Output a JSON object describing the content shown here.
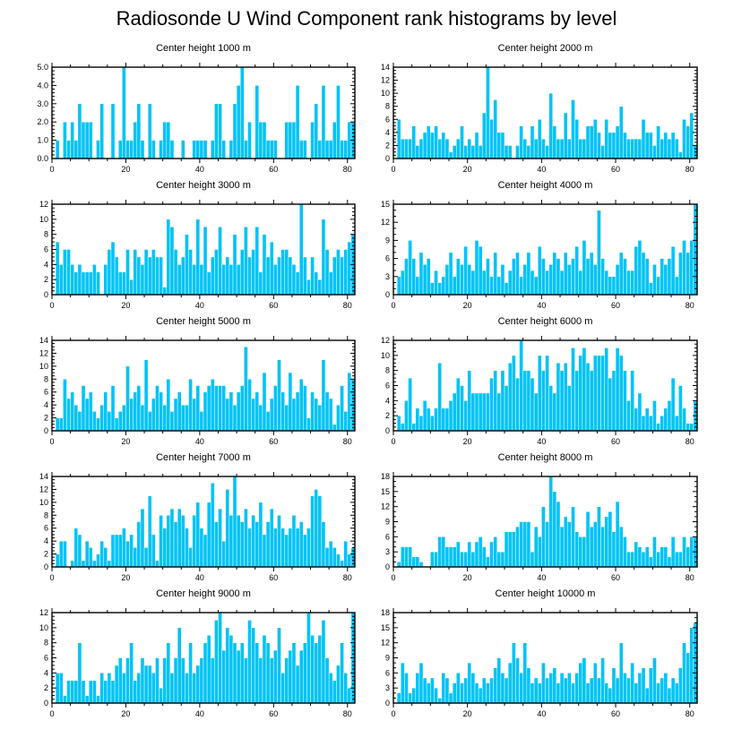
{
  "figure_title": "Radiosonde U Wind Component rank histograms by level",
  "colors": {
    "bar": "#00c3f7",
    "bar_edge": "#ffffff",
    "frame": "#000000"
  },
  "chart_data": [
    {
      "type": "bar",
      "title": "Center height 1000 m",
      "xlim": [
        0,
        82
      ],
      "ylim": [
        0,
        5
      ],
      "xticks": [
        0,
        20,
        40,
        60,
        80
      ],
      "yticks": [
        0,
        1,
        2,
        3,
        4,
        5
      ],
      "ytick_labels": [
        "0.0",
        "1.0",
        "2.0",
        "3.0",
        "4.0",
        "5.0"
      ],
      "values": [
        0,
        1,
        0,
        2,
        1,
        2,
        1,
        3,
        2,
        2,
        2,
        0,
        1,
        3,
        0,
        0,
        3,
        0,
        1,
        5,
        1,
        1,
        2,
        3,
        1,
        0,
        3,
        1,
        0,
        1,
        2,
        2,
        1,
        0,
        0,
        1,
        0,
        0,
        1,
        1,
        1,
        1,
        0,
        1,
        3,
        3,
        1,
        0,
        1,
        3,
        4,
        5,
        1,
        2,
        0,
        4,
        2,
        2,
        1,
        1,
        1,
        0,
        0,
        2,
        2,
        2,
        4,
        1,
        1,
        0,
        2,
        3,
        1,
        4,
        1,
        1,
        2,
        4,
        1,
        1,
        2,
        2
      ]
    },
    {
      "type": "bar",
      "title": "Center height 2000 m",
      "xlim": [
        0,
        82
      ],
      "ylim": [
        0,
        14
      ],
      "xticks": [
        0,
        20,
        40,
        60,
        80
      ],
      "yticks": [
        0,
        2,
        4,
        6,
        8,
        10,
        12,
        14
      ],
      "ytick_labels": [
        "0",
        "2",
        "4",
        "6",
        "8",
        "10",
        "12",
        "14"
      ],
      "values": [
        0,
        6,
        3,
        3,
        3,
        5,
        2,
        3,
        4,
        5,
        4,
        5,
        3,
        4,
        3,
        1,
        2,
        3,
        5,
        2,
        3,
        2,
        4,
        2,
        7,
        14,
        6,
        9,
        4,
        4,
        2,
        2,
        0,
        2,
        5,
        3,
        2,
        5,
        3,
        6,
        3,
        2,
        10,
        5,
        3,
        3,
        7,
        3,
        9,
        6,
        3,
        3,
        5,
        5,
        6,
        4,
        2,
        6,
        4,
        4,
        5,
        8,
        4,
        3,
        3,
        3,
        3,
        6,
        4,
        4,
        2,
        5,
        3,
        4,
        3,
        4,
        3,
        1,
        6,
        5,
        7,
        2
      ]
    },
    {
      "type": "bar",
      "title": "Center height 3000 m",
      "xlim": [
        0,
        82
      ],
      "ylim": [
        0,
        12
      ],
      "xticks": [
        0,
        20,
        40,
        60,
        80
      ],
      "yticks": [
        0,
        2,
        4,
        6,
        8,
        10,
        12
      ],
      "ytick_labels": [
        "0",
        "2",
        "4",
        "6",
        "8",
        "10",
        "12"
      ],
      "values": [
        0,
        7,
        4,
        6,
        6,
        4,
        3,
        4,
        3,
        3,
        3,
        4,
        3,
        0,
        4,
        6,
        7,
        5,
        3,
        3,
        6,
        2,
        6,
        5,
        4,
        6,
        5,
        6,
        5,
        5,
        1,
        10,
        9,
        6,
        4,
        5,
        8,
        6,
        4,
        10,
        4,
        9,
        3,
        5,
        6,
        9,
        4,
        5,
        4,
        8,
        4,
        6,
        9,
        5,
        6,
        9,
        3,
        8,
        5,
        7,
        4,
        5,
        6,
        6,
        5,
        4,
        3,
        12,
        5,
        2,
        5,
        3,
        2,
        10,
        6,
        3,
        5,
        6,
        5,
        6,
        7,
        8
      ]
    },
    {
      "type": "bar",
      "title": "Center height 4000 m",
      "xlim": [
        0,
        82
      ],
      "ylim": [
        0,
        15
      ],
      "xticks": [
        0,
        20,
        40,
        60,
        80
      ],
      "yticks": [
        0,
        3,
        6,
        9,
        12,
        15
      ],
      "ytick_labels": [
        "0",
        "3",
        "6",
        "9",
        "12",
        "15"
      ],
      "values": [
        0,
        3,
        4,
        6,
        9,
        6,
        3,
        7,
        5,
        6,
        2,
        4,
        2,
        3,
        5,
        7,
        3,
        6,
        5,
        8,
        5,
        4,
        9,
        8,
        4,
        6,
        3,
        7,
        3,
        5,
        2,
        4,
        6,
        7,
        3,
        5,
        7,
        4,
        3,
        8,
        6,
        4,
        5,
        7,
        6,
        4,
        7,
        5,
        6,
        8,
        4,
        9,
        6,
        7,
        5,
        14,
        6,
        4,
        3,
        3,
        5,
        7,
        6,
        4,
        4,
        8,
        9,
        7,
        6,
        2,
        5,
        3,
        6,
        5,
        6,
        8,
        3,
        7,
        9,
        7,
        9,
        15
      ]
    },
    {
      "type": "bar",
      "title": "Center height 5000 m",
      "xlim": [
        0,
        82
      ],
      "ylim": [
        0,
        14
      ],
      "xticks": [
        0,
        20,
        40,
        60,
        80
      ],
      "yticks": [
        0,
        2,
        4,
        6,
        8,
        10,
        12,
        14
      ],
      "ytick_labels": [
        "0",
        "2",
        "4",
        "6",
        "8",
        "10",
        "12",
        "14"
      ],
      "values": [
        0,
        2,
        2,
        8,
        5,
        6,
        4,
        3,
        7,
        5,
        6,
        3,
        2,
        4,
        6,
        3,
        7,
        2,
        3,
        4,
        10,
        5,
        6,
        7,
        4,
        11,
        3,
        5,
        7,
        6,
        4,
        8,
        3,
        5,
        6,
        4,
        4,
        8,
        5,
        7,
        3,
        6,
        7,
        8,
        7,
        7,
        7,
        5,
        6,
        4,
        6,
        7,
        13,
        8,
        5,
        6,
        4,
        9,
        3,
        5,
        7,
        11,
        6,
        4,
        9,
        5,
        6,
        8,
        7,
        2,
        6,
        5,
        4,
        11,
        6,
        5,
        1,
        4,
        7,
        3,
        9,
        8
      ]
    },
    {
      "type": "bar",
      "title": "Center height 6000 m",
      "xlim": [
        0,
        82
      ],
      "ylim": [
        0,
        12
      ],
      "xticks": [
        0,
        20,
        40,
        60,
        80
      ],
      "yticks": [
        0,
        2,
        4,
        6,
        8,
        10,
        12
      ],
      "ytick_labels": [
        "0",
        "2",
        "4",
        "6",
        "8",
        "10",
        "12"
      ],
      "values": [
        0,
        2,
        1,
        4,
        7,
        1,
        3,
        2,
        4,
        3,
        2,
        3,
        9,
        3,
        3,
        4,
        5,
        7,
        6,
        4,
        8,
        5,
        5,
        5,
        5,
        5,
        7,
        8,
        5,
        8,
        6,
        9,
        10,
        7,
        12,
        8,
        8,
        7,
        5,
        10,
        8,
        10,
        6,
        5,
        9,
        8,
        9,
        6,
        11,
        8,
        10,
        11,
        9,
        8,
        10,
        10,
        10,
        11,
        7,
        8,
        11,
        10,
        8,
        4,
        8,
        3,
        5,
        2,
        3,
        2,
        4,
        1,
        2,
        3,
        4,
        7,
        2,
        6,
        3,
        1,
        1,
        4
      ]
    },
    {
      "type": "bar",
      "title": "Center height 7000 m",
      "xlim": [
        0,
        82
      ],
      "ylim": [
        0,
        14
      ],
      "xticks": [
        0,
        20,
        40,
        60,
        80
      ],
      "yticks": [
        0,
        2,
        4,
        6,
        8,
        10,
        12,
        14
      ],
      "ytick_labels": [
        "0",
        "2",
        "4",
        "6",
        "8",
        "10",
        "12",
        "14"
      ],
      "values": [
        0,
        2,
        4,
        4,
        0,
        1,
        6,
        5,
        1,
        4,
        3,
        1,
        2,
        4,
        3,
        1,
        5,
        5,
        5,
        6,
        4,
        5,
        3,
        7,
        9,
        3,
        11,
        5,
        1,
        8,
        6,
        8,
        9,
        7,
        9,
        8,
        6,
        3,
        8,
        10,
        6,
        5,
        10,
        13,
        7,
        9,
        4,
        12,
        8,
        14,
        8,
        7,
        9,
        6,
        8,
        7,
        10,
        5,
        7,
        9,
        6,
        8,
        6,
        5,
        6,
        8,
        6,
        7,
        5,
        6,
        11,
        12,
        11,
        7,
        3,
        4,
        3,
        2,
        1,
        4,
        2,
        3
      ]
    },
    {
      "type": "bar",
      "title": "Center height 8000 m",
      "xlim": [
        0,
        82
      ],
      "ylim": [
        0,
        18
      ],
      "xticks": [
        0,
        20,
        40,
        60,
        80
      ],
      "yticks": [
        0,
        3,
        6,
        9,
        12,
        15,
        18
      ],
      "ytick_labels": [
        "0",
        "3",
        "6",
        "9",
        "12",
        "15",
        "18"
      ],
      "values": [
        0,
        1,
        4,
        4,
        4,
        2,
        2,
        1,
        0,
        0,
        3,
        3,
        6,
        6,
        4,
        4,
        4,
        5,
        3,
        3,
        5,
        3,
        5,
        6,
        4,
        2,
        5,
        6,
        3,
        3,
        7,
        7,
        7,
        8,
        9,
        9,
        9,
        3,
        8,
        6,
        12,
        9,
        18,
        15,
        13,
        8,
        10,
        9,
        12,
        7,
        6,
        6,
        11,
        8,
        9,
        12,
        8,
        10,
        11,
        7,
        13,
        8,
        6,
        3,
        3,
        5,
        4,
        3,
        4,
        2,
        6,
        3,
        4,
        4,
        2,
        6,
        3,
        3,
        6,
        4,
        6,
        6
      ]
    },
    {
      "type": "bar",
      "title": "Center height 9000 m",
      "xlim": [
        0,
        82
      ],
      "ylim": [
        0,
        12
      ],
      "xticks": [
        0,
        20,
        40,
        60,
        80
      ],
      "yticks": [
        0,
        2,
        4,
        6,
        8,
        10,
        12
      ],
      "ytick_labels": [
        "0",
        "2",
        "4",
        "6",
        "8",
        "10",
        "12"
      ],
      "values": [
        0,
        4,
        4,
        1,
        3,
        3,
        3,
        8,
        3,
        1,
        3,
        3,
        1,
        4,
        3,
        4,
        3,
        5,
        6,
        4,
        6,
        8,
        3,
        4,
        6,
        5,
        5,
        4,
        6,
        2,
        6,
        8,
        4,
        6,
        10,
        6,
        4,
        8,
        4,
        5,
        6,
        8,
        9,
        6,
        11,
        12,
        7,
        10,
        9,
        8,
        7,
        8,
        6,
        11,
        10,
        8,
        6,
        9,
        8,
        6,
        7,
        10,
        4,
        6,
        7,
        8,
        5,
        7,
        8,
        12,
        9,
        8,
        9,
        11,
        6,
        4,
        3,
        5,
        8,
        4,
        2,
        12
      ]
    },
    {
      "type": "bar",
      "title": "Center height 10000 m",
      "xlim": [
        0,
        82
      ],
      "ylim": [
        0,
        18
      ],
      "xticks": [
        0,
        20,
        40,
        60,
        80
      ],
      "yticks": [
        0,
        3,
        6,
        9,
        12,
        15,
        18
      ],
      "ytick_labels": [
        "0",
        "3",
        "6",
        "9",
        "12",
        "15",
        "18"
      ],
      "values": [
        0,
        2,
        8,
        6,
        2,
        3,
        6,
        8,
        5,
        4,
        5,
        3,
        1,
        6,
        5,
        2,
        4,
        6,
        4,
        5,
        8,
        6,
        4,
        3,
        5,
        4,
        5,
        7,
        9,
        6,
        5,
        8,
        12,
        9,
        6,
        12,
        7,
        4,
        5,
        4,
        8,
        5,
        6,
        7,
        4,
        6,
        5,
        6,
        4,
        6,
        8,
        9,
        4,
        5,
        8,
        5,
        9,
        4,
        3,
        7,
        5,
        12,
        6,
        5,
        8,
        4,
        6,
        7,
        3,
        7,
        9,
        4,
        5,
        6,
        3,
        5,
        4,
        7,
        12,
        10,
        15,
        16
      ]
    }
  ]
}
